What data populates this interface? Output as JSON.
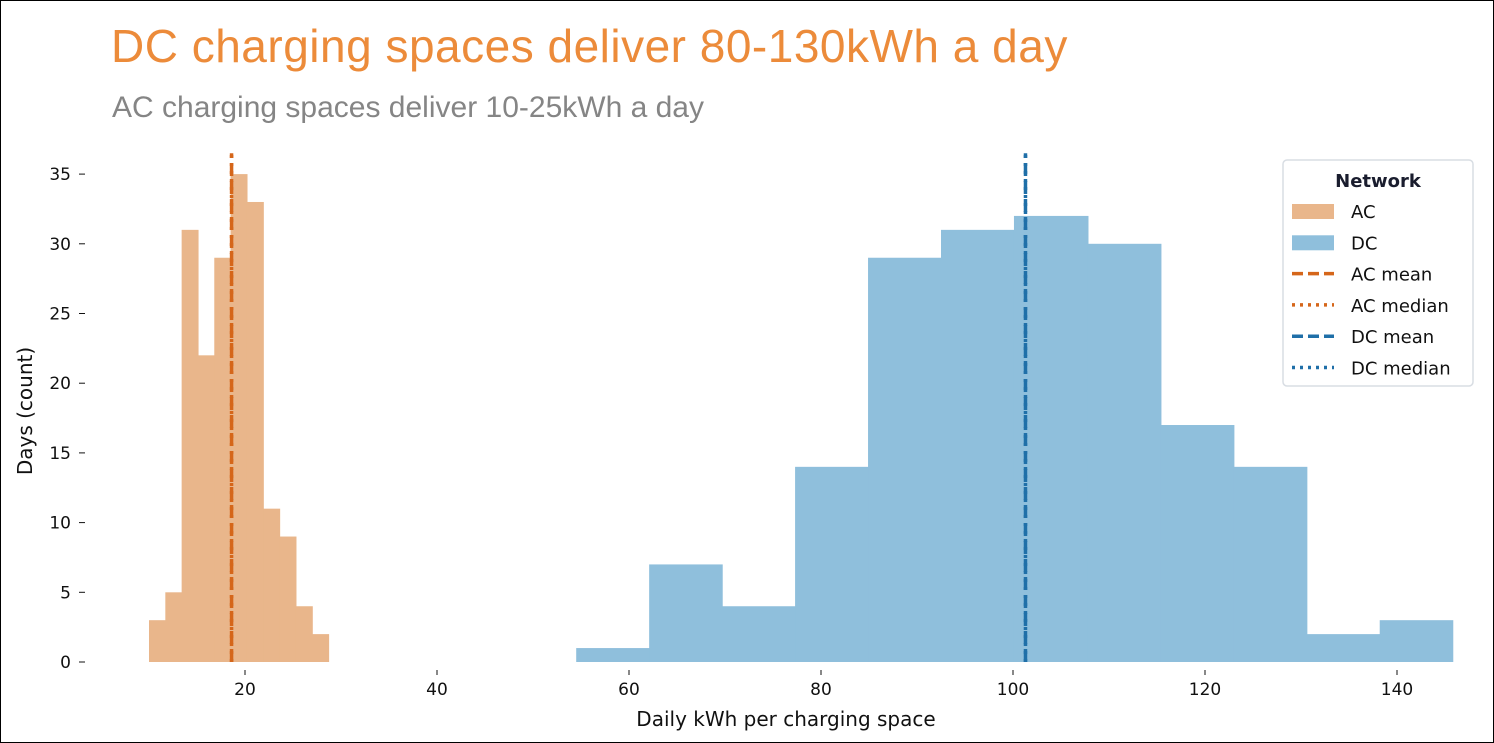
{
  "title": "DC charging spaces deliver 80-130kWh a day",
  "subtitle": "AC charging spaces deliver 10-25kWh a day",
  "chart_data": {
    "type": "bar",
    "subtype": "histogram",
    "title": "DC charging spaces deliver 80-130kWh a day",
    "subtitle": "AC charging spaces deliver 10-25kWh a day",
    "xlabel": "Daily kWh per charging space",
    "ylabel": "Days (count)",
    "xlim": [
      5,
      147
    ],
    "ylim": [
      0,
      36.5
    ],
    "xticks": [
      20,
      40,
      60,
      80,
      100,
      120,
      140
    ],
    "yticks": [
      0,
      5,
      10,
      15,
      20,
      25,
      30,
      35
    ],
    "grid": false,
    "legend": {
      "title": "Network",
      "placement": "upper-right",
      "entries": [
        "AC",
        "DC",
        "AC mean",
        "AC median",
        "DC mean",
        "DC median"
      ]
    },
    "series": [
      {
        "name": "AC",
        "color": "#e9b68b",
        "bin_edges": [
          10.0,
          11.7,
          13.4,
          15.1,
          16.8,
          18.5,
          20.2,
          21.9,
          23.6,
          25.3,
          27.0,
          28.7
        ],
        "counts": [
          3,
          5,
          31,
          22,
          29,
          35,
          33,
          11,
          9,
          4,
          2
        ]
      },
      {
        "name": "DC",
        "color": "#8fbfdc",
        "bin_edges": [
          54.5,
          62.1,
          69.7,
          77.3,
          84.9,
          92.5,
          100.1,
          107.8,
          115.4,
          123.0,
          130.6,
          138.2,
          145.8
        ],
        "counts": [
          1,
          7,
          4,
          14,
          29,
          31,
          32,
          30,
          17,
          14,
          2,
          3
        ]
      }
    ],
    "reference_lines": [
      {
        "name": "AC mean",
        "value": 18.6,
        "color": "#d5661a",
        "style": "dashed"
      },
      {
        "name": "AC median",
        "value": 18.6,
        "color": "#d5661a",
        "style": "dotted"
      },
      {
        "name": "DC mean",
        "value": 101.3,
        "color": "#1f6fa8",
        "style": "dashed"
      },
      {
        "name": "DC median",
        "value": 101.3,
        "color": "#1f6fa8",
        "style": "dotted"
      }
    ]
  }
}
